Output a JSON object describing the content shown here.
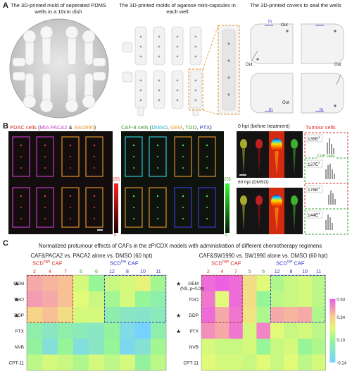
{
  "panel_a": {
    "label": "A",
    "captions": [
      "The 3D-printed mold of seperated PDMS wells in a 10cm dish",
      "The 3D-printed molds of agarose mini-capsules in each well",
      "The 3D-printed covers to seal the wells"
    ],
    "cover_labels": {
      "in": "In",
      "out": "Out"
    }
  },
  "panel_b": {
    "label": "B",
    "title_left": {
      "pdac": "PDAC cells",
      "mia": "MIA PACA2",
      "amp": "&",
      "sw": "SW1990"
    },
    "title_mid": {
      "caf": "CAF-8 cells",
      "dmso": "DMSO",
      "gem": "GEM",
      "tgo": "TGO",
      "ptx": "PTX"
    },
    "title_right": {
      "zero": "0 hpt (before treatment)",
      "tumour": "Tumour cells",
      "sixty": "60 hpt (DMSO)",
      "caf": "CAF cells"
    },
    "scale_left": {
      "max": "255",
      "min": "0"
    },
    "scale_mid": {
      "max": "255",
      "min": "0"
    },
    "hist_values": [
      "135E",
      "127E",
      "176E",
      "144E"
    ],
    "hist_exp": "3"
  },
  "panel_c": {
    "label": "C",
    "title": "Normalized protumour effects of CAFs in the zP/CDX models with administration of different chemotherapy regimens",
    "left": {
      "subtitle": "CAF&PACA2 vs. PACA2 alone vs. DMSO (60 hpt)",
      "high_a": "SCD",
      "high_b": "high",
      "high_c": " CAF",
      "low_a": "SCD",
      "low_b": "low",
      "low_c": " CAF"
    },
    "right": {
      "subtitle": "CAF&SW1990 vs. SW1990 alone vs. DMSO (60 hpt)",
      "high_a": "SCD",
      "high_b": "high",
      "high_c": " CAF",
      "low_a": "SCD",
      "low_b": "low",
      "low_c": " CAF",
      "ns_note": "(NS, p=0.08)"
    },
    "star": "★"
  },
  "chart_data": [
    {
      "type": "heatmap",
      "title": "CAF&PACA2 vs. PACA2 alone vs. DMSO (60 hpt)",
      "columns": [
        "2",
        "4",
        "7",
        "5",
        "6",
        "12",
        "8",
        "10",
        "11"
      ],
      "rows": [
        "GEM",
        "TGO",
        "DDP",
        "PTX",
        "NVB",
        "CPT-11"
      ],
      "starred_rows": [
        "GEM",
        "TGO",
        "DDP"
      ],
      "values": [
        [
          0.4,
          0.38,
          0.36,
          0.2,
          0.1,
          0.18,
          0.2,
          0.24,
          0.12
        ],
        [
          0.42,
          0.4,
          0.36,
          0.22,
          0.18,
          0.12,
          0.2,
          0.1,
          0.05
        ],
        [
          0.32,
          0.36,
          0.3,
          0.2,
          0.2,
          0.05,
          0.0,
          -0.02,
          0.02
        ],
        [
          0.05,
          0.0,
          0.05,
          0.02,
          0.0,
          0.08,
          -0.08,
          -0.14,
          0.05
        ],
        [
          0.08,
          -0.05,
          0.1,
          -0.06,
          0.0,
          0.1,
          -0.1,
          -0.04,
          0.12
        ],
        [
          0.16,
          0.2,
          0.18,
          0.14,
          0.2,
          0.16,
          0.2,
          0.08,
          0.16
        ]
      ]
    },
    {
      "type": "heatmap",
      "title": "CAF&SW1990 vs. SW1990 alone vs. DMSO (60 hpt)",
      "columns": [
        "2",
        "4",
        "7",
        "5",
        "6",
        "12",
        "8",
        "10",
        "11"
      ],
      "rows": [
        "GEM",
        "TGO",
        "DDP",
        "PTX",
        "NVB",
        "CPT-11"
      ],
      "starred_rows": [
        "GEM",
        "DDP",
        "PTX"
      ],
      "values": [
        [
          0.5,
          0.52,
          0.5,
          0.3,
          0.22,
          0.14,
          0.18,
          0.2,
          0.16
        ],
        [
          0.48,
          0.22,
          0.5,
          0.3,
          0.1,
          0.16,
          0.18,
          0.2,
          0.16
        ],
        [
          0.5,
          0.4,
          0.48,
          0.28,
          0.14,
          0.4,
          0.38,
          0.4,
          0.14
        ],
        [
          0.44,
          0.4,
          0.48,
          0.2,
          0.46,
          0.22,
          0.18,
          0.2,
          0.16
        ],
        [
          0.2,
          0.18,
          0.18,
          0.2,
          0.1,
          0.18,
          0.2,
          0.1,
          0.14
        ],
        [
          0.22,
          0.2,
          0.2,
          0.18,
          0.22,
          0.18,
          0.22,
          0.16,
          0.2
        ]
      ],
      "colorbar": {
        "ticks": [
          "0.53",
          "0.34",
          "0.10",
          "-0.14"
        ],
        "range": [
          -0.14,
          0.53
        ]
      }
    }
  ]
}
